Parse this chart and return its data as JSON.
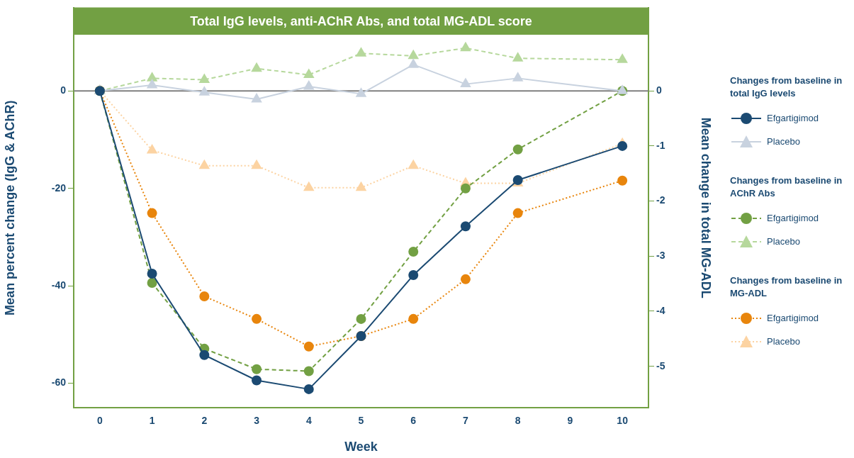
{
  "chart_data": {
    "type": "line",
    "title": "Total IgG levels, anti-AChR Abs, and total MG-ADL score",
    "xlabel": "Week",
    "ylabel": "Mean percent change (IgG & AChR)",
    "y2label": "Mean change in total MG-ADL",
    "x": [
      0,
      1,
      2,
      3,
      4,
      5,
      6,
      7,
      8,
      10
    ],
    "xlim": [
      -0.5,
      10.5
    ],
    "xticks": [
      0,
      1,
      2,
      3,
      4,
      5,
      6,
      7,
      8,
      9,
      10
    ],
    "ylim": [
      -65,
      17
    ],
    "yticks": [
      0,
      -20,
      -40,
      -60
    ],
    "y2lim": [
      -5.75,
      1.5
    ],
    "y2ticks": [
      0,
      -1,
      -2,
      -3,
      -4,
      -5
    ],
    "grid": false,
    "legend": "right",
    "annotations": [
      "Changes from baseline in total IgG levels",
      "Changes from baseline in AChR Abs",
      "Changes from baseline in MG-ADL"
    ],
    "ref_lines": [
      {
        "axis": "y",
        "value": 0,
        "color": "#808080"
      }
    ],
    "series": [
      {
        "name": "Efgartigimod",
        "color": "#1b4a72",
        "marker": "circle",
        "line_style": "solid",
        "values": [
          0,
          -37.5,
          -54.2,
          -59.4,
          -61.2,
          -50.3,
          -37.8,
          -27.8,
          -18.3,
          -11.3
        ]
      },
      {
        "name": "Placebo",
        "color": "#c8d2df",
        "marker": "triangle",
        "line_style": "solid",
        "values": [
          0,
          1.2,
          -0.3,
          -1.7,
          0.9,
          -0.6,
          5.4,
          1.4,
          2.6,
          0
        ]
      },
      {
        "name": "Efgartigimod",
        "color": "#72a043",
        "marker": "circle",
        "line_style": "dashed",
        "values": [
          0,
          -39.4,
          -52.9,
          -57.1,
          -57.5,
          -46.8,
          -33,
          -20,
          -12,
          0
        ]
      },
      {
        "name": "Placebo",
        "color": "#b6d89c",
        "marker": "triangle",
        "line_style": "dashed",
        "values": [
          0,
          2.6,
          2.3,
          4.6,
          3.3,
          7.7,
          7.2,
          8.8,
          6.7,
          6.4
        ]
      },
      {
        "name": "Efgartigimod",
        "color": "#e8850c",
        "marker": "circle",
        "line_style": "dotted",
        "axis": "y2",
        "values": [
          0,
          -2.22,
          -3.73,
          -4.14,
          -4.64,
          -4.45,
          -4.14,
          -3.42,
          -2.22,
          -1.63
        ]
      },
      {
        "name": "Placebo",
        "color": "#fcd3a2",
        "marker": "triangle",
        "line_style": "dotted",
        "axis": "y2",
        "values": [
          0,
          -1.08,
          -1.36,
          -1.36,
          -1.76,
          -1.76,
          -1.36,
          -1.68,
          -1.68,
          -0.96
        ]
      }
    ]
  }
}
